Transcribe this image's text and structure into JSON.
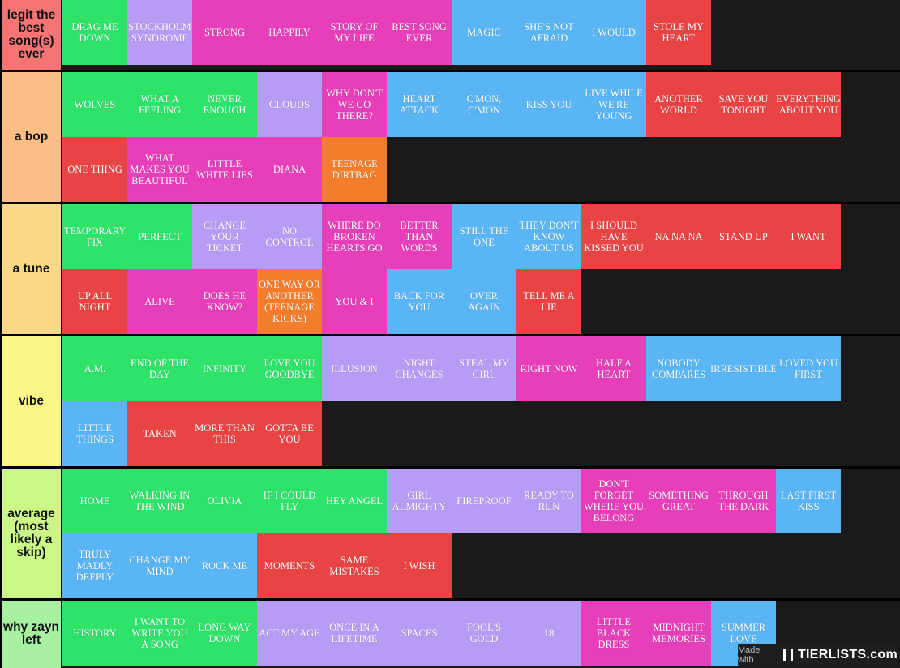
{
  "colors": {
    "green": "#2ee26a",
    "purple": "#b69cf4",
    "pink": "#e73fba",
    "blue": "#5ab5f5",
    "red": "#e84444",
    "orange": "#f47d2b"
  },
  "tiers": [
    {
      "label": "legit the best song(s) ever",
      "color": "#f67474",
      "items": [
        {
          "text": "DRAG ME DOWN",
          "color": "green"
        },
        {
          "text": "STOCKHOLM SYNDROME",
          "color": "purple"
        },
        {
          "text": "STRONG",
          "color": "pink"
        },
        {
          "text": "HAPPILY",
          "color": "pink"
        },
        {
          "text": "STORY OF MY LIFE",
          "color": "pink"
        },
        {
          "text": "BEST SONG EVER",
          "color": "pink"
        },
        {
          "text": "MAGIC",
          "color": "blue"
        },
        {
          "text": "SHE'S NOT AFRAID",
          "color": "blue"
        },
        {
          "text": "I WOULD",
          "color": "blue"
        },
        {
          "text": "STOLE MY HEART",
          "color": "red"
        }
      ]
    },
    {
      "label": "a bop",
      "color": "#fbbf86",
      "items": [
        {
          "text": "WOLVES",
          "color": "green"
        },
        {
          "text": "WHAT A FEELING",
          "color": "green"
        },
        {
          "text": "NEVER ENOUGH",
          "color": "green"
        },
        {
          "text": "CLOUDS",
          "color": "purple"
        },
        {
          "text": "WHY DON'T WE GO THERE?",
          "color": "pink"
        },
        {
          "text": "HEART ATTACK",
          "color": "blue"
        },
        {
          "text": "C'MON, C'MON",
          "color": "blue"
        },
        {
          "text": "KISS YOU",
          "color": "blue"
        },
        {
          "text": "LIVE WHILE WE'RE YOUNG",
          "color": "blue"
        },
        {
          "text": "ANOTHER WORLD",
          "color": "red"
        },
        {
          "text": "SAVE YOU TONIGHT",
          "color": "red"
        },
        {
          "text": "EVERYTHING ABOUT YOU",
          "color": "red"
        },
        {
          "text": "ONE THING",
          "color": "red"
        },
        {
          "text": "WHAT MAKES YOU BEAUTIFUL",
          "color": "pink"
        },
        {
          "text": "LITTLE WHITE LIES",
          "color": "pink"
        },
        {
          "text": "DIANA",
          "color": "pink"
        },
        {
          "text": "TEENAGE DIRTBAG",
          "color": "orange"
        }
      ]
    },
    {
      "label": "a tune",
      "color": "#fbd786",
      "items": [
        {
          "text": "TEMPORARY FIX",
          "color": "green"
        },
        {
          "text": "PERFECT",
          "color": "green"
        },
        {
          "text": "CHANGE YOUR TICKET",
          "color": "purple"
        },
        {
          "text": "NO CONTROL",
          "color": "purple"
        },
        {
          "text": "WHERE DO BROKEN HEARTS GO",
          "color": "pink"
        },
        {
          "text": "BETTER THAN WORDS",
          "color": "pink"
        },
        {
          "text": "STILL THE ONE",
          "color": "blue"
        },
        {
          "text": "THEY DON'T KNOW ABOUT US",
          "color": "blue"
        },
        {
          "text": "I SHOULD HAVE KISSED YOU",
          "color": "red"
        },
        {
          "text": "NA NA NA",
          "color": "red"
        },
        {
          "text": "STAND UP",
          "color": "red"
        },
        {
          "text": "I WANT",
          "color": "red"
        },
        {
          "text": "UP ALL NIGHT",
          "color": "red"
        },
        {
          "text": "ALIVE",
          "color": "pink"
        },
        {
          "text": "DOES HE KNOW?",
          "color": "pink"
        },
        {
          "text": "ONE WAY OR ANOTHER (TEENAGE KICKS)",
          "color": "orange"
        },
        {
          "text": "YOU & I",
          "color": "pink"
        },
        {
          "text": "BACK FOR YOU",
          "color": "blue"
        },
        {
          "text": "OVER AGAIN",
          "color": "blue"
        },
        {
          "text": "TELL ME A LIE",
          "color": "red"
        }
      ]
    },
    {
      "label": "vibe",
      "color": "#fbf786",
      "items": [
        {
          "text": "A.M.",
          "color": "green"
        },
        {
          "text": "END OF THE DAY",
          "color": "green"
        },
        {
          "text": "INFINITY",
          "color": "green"
        },
        {
          "text": "LOVE YOU GOODBYE",
          "color": "green"
        },
        {
          "text": "ILLUSION",
          "color": "purple"
        },
        {
          "text": "NIGHT CHANGES",
          "color": "purple"
        },
        {
          "text": "STEAL MY GIRL",
          "color": "purple"
        },
        {
          "text": "RIGHT NOW",
          "color": "pink"
        },
        {
          "text": "HALF A HEART",
          "color": "pink"
        },
        {
          "text": "NOBODY COMPARES",
          "color": "blue"
        },
        {
          "text": "IRRESISTIBLE",
          "color": "blue"
        },
        {
          "text": "LOVED YOU FIRST",
          "color": "blue"
        },
        {
          "text": "LITTLE THINGS",
          "color": "blue"
        },
        {
          "text": "TAKEN",
          "color": "red"
        },
        {
          "text": "MORE THAN THIS",
          "color": "red"
        },
        {
          "text": "GOTTA BE YOU",
          "color": "red"
        }
      ]
    },
    {
      "label": "average (most likely a skip)",
      "color": "#cbf786",
      "items": [
        {
          "text": "HOME",
          "color": "green"
        },
        {
          "text": "WALKING IN THE WIND",
          "color": "green"
        },
        {
          "text": "OLIVIA",
          "color": "green"
        },
        {
          "text": "IF I COULD FLY",
          "color": "green"
        },
        {
          "text": "HEY ANGEL",
          "color": "green"
        },
        {
          "text": "GIRL ALMIGHTY",
          "color": "purple"
        },
        {
          "text": "FIREPROOF",
          "color": "purple"
        },
        {
          "text": "READY TO RUN",
          "color": "purple"
        },
        {
          "text": "DON'T FORGET WHERE YOU BELONG",
          "color": "pink"
        },
        {
          "text": "SOMETHING GREAT",
          "color": "pink"
        },
        {
          "text": "THROUGH THE DARK",
          "color": "pink"
        },
        {
          "text": "LAST FIRST KISS",
          "color": "blue"
        },
        {
          "text": "TRULY MADLY DEEPLY",
          "color": "blue"
        },
        {
          "text": "CHANGE MY MIND",
          "color": "blue"
        },
        {
          "text": "ROCK ME",
          "color": "blue"
        },
        {
          "text": "MOMENTS",
          "color": "red"
        },
        {
          "text": "SAME MISTAKES",
          "color": "red"
        },
        {
          "text": "I WISH",
          "color": "red"
        }
      ]
    },
    {
      "label": "why zayn left",
      "color": "#a6f0a0",
      "items": [
        {
          "text": "HISTORY",
          "color": "green"
        },
        {
          "text": "I WANT TO WRITE YOU A SONG",
          "color": "green"
        },
        {
          "text": "LONG WAY DOWN",
          "color": "green"
        },
        {
          "text": "ACT MY AGE",
          "color": "purple"
        },
        {
          "text": "ONCE IN A LIFETIME",
          "color": "purple"
        },
        {
          "text": "SPACES",
          "color": "purple"
        },
        {
          "text": "FOOL'S GOLD",
          "color": "purple"
        },
        {
          "text": "18",
          "color": "purple"
        },
        {
          "text": "LITTLE BLACK DRESS",
          "color": "pink"
        },
        {
          "text": "MIDNIGHT MEMORIES",
          "color": "pink"
        },
        {
          "text": "SUMMER LOVE",
          "color": "blue"
        }
      ]
    }
  ],
  "watermark": {
    "made_with": "Made with",
    "brand": "TIERLISTS.com"
  }
}
